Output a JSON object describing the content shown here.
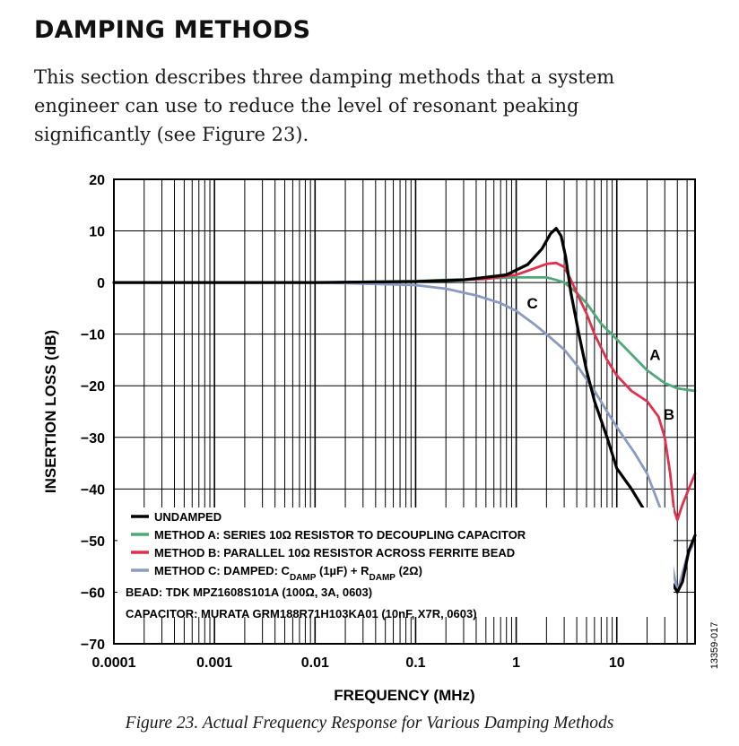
{
  "section": {
    "heading": "DAMPING METHODS",
    "body": "This section describes three damping methods that a system engineer can use to reduce the level of resonant peaking significantly (see Figure 23)."
  },
  "figure": {
    "caption": "Figure 23. Actual Frequency Response for Various Damping Methods",
    "id": "13359-017"
  },
  "chart_data": {
    "type": "line",
    "xlabel": "FREQUENCY (MHz)",
    "ylabel": "INSERTION LOSS (dB)",
    "x_scale": "log",
    "xlim": [
      0.0001,
      60
    ],
    "ylim": [
      -70,
      20
    ],
    "x_ticks": [
      0.0001,
      0.001,
      0.01,
      0.1,
      1,
      10
    ],
    "x_tick_labels": [
      "0.0001",
      "0.001",
      "0.01",
      "0.1",
      "1",
      "10"
    ],
    "y_ticks": [
      20,
      10,
      0,
      -10,
      -20,
      -30,
      -40,
      -50,
      -60,
      -70
    ],
    "y_tick_labels": [
      "20",
      "10",
      "0",
      "−10",
      "−20",
      "−30",
      "−40",
      "−50",
      "−60",
      "−70"
    ],
    "grid": true,
    "legend_placement": "bottom-left",
    "series": [
      {
        "name": "UNDAMPED",
        "color": "#000000",
        "x": [
          0.0001,
          0.01,
          0.1,
          0.3,
          0.8,
          1.3,
          1.8,
          2.2,
          2.5,
          2.8,
          3.1,
          3.5,
          4.2,
          5,
          6,
          8,
          10,
          14,
          20,
          28,
          35,
          40,
          45,
          52,
          60
        ],
        "y": [
          0,
          0,
          0.2,
          0.5,
          1.5,
          3.5,
          6.5,
          9.5,
          10.5,
          9,
          5,
          -2,
          -10,
          -17,
          -23,
          -30,
          -36,
          -40,
          -45,
          -52,
          -58,
          -60,
          -58,
          -52,
          -49
        ]
      },
      {
        "name": "METHOD A: SERIES 10Ω RESISTOR TO DECOUPLING CAPACITOR",
        "color": "#4fa877",
        "x": [
          0.0001,
          0.01,
          0.1,
          0.5,
          1,
          1.5,
          2,
          2.5,
          3,
          4,
          5,
          7,
          10,
          15,
          20,
          30,
          40,
          60
        ],
        "y": [
          0,
          0,
          0.3,
          0.8,
          1,
          1,
          1,
          0.5,
          0,
          -2,
          -4,
          -8,
          -11,
          -14.5,
          -17,
          -19.5,
          -20.5,
          -21
        ]
      },
      {
        "name": "METHOD B: PARALLEL 10Ω RESISTOR ACROSS FERRITE BEAD",
        "color": "#e0304e",
        "x": [
          0.0001,
          0.01,
          0.1,
          0.5,
          1,
          1.5,
          2,
          2.5,
          3,
          3.5,
          4,
          5,
          6,
          8,
          10,
          14,
          20,
          26,
          30,
          34,
          37,
          40,
          45,
          52,
          60
        ],
        "y": [
          0,
          0,
          0.2,
          0.7,
          1.5,
          2.7,
          3.6,
          3.8,
          3,
          0.5,
          -2,
          -6,
          -10,
          -15,
          -18,
          -21,
          -23,
          -26,
          -30,
          -37,
          -44,
          -46,
          -43,
          -40,
          -37
        ]
      },
      {
        "name": "METHOD C: DAMPED: C_DAMP (1µF) + R_DAMP (2Ω)",
        "color": "#8a9bbf",
        "x": [
          0.0001,
          0.01,
          0.03,
          0.1,
          0.2,
          0.4,
          0.7,
          1,
          1.5,
          2,
          3,
          4,
          6,
          8,
          10,
          15,
          20,
          30,
          35,
          40,
          44,
          50,
          60
        ],
        "y": [
          0,
          0,
          -0.2,
          -0.5,
          -1.2,
          -2.5,
          -4,
          -5.5,
          -8,
          -10,
          -13,
          -16,
          -21,
          -25,
          -28,
          -33,
          -37,
          -46,
          -54,
          -60,
          -57,
          -53,
          -50
        ]
      }
    ],
    "legend": [
      {
        "label": "UNDAMPED",
        "color": "#000000"
      },
      {
        "label": "METHOD A: SERIES 10Ω RESISTOR TO DECOUPLING CAPACITOR",
        "color": "#4fa877"
      },
      {
        "label": "METHOD B: PARALLEL 10Ω RESISTOR ACROSS FERRITE BEAD",
        "color": "#e0304e"
      },
      {
        "label_parts": [
          "METHOD C: DAMPED: C",
          "DAMP",
          " (1µF) + R",
          "DAMP",
          " (2Ω)"
        ],
        "color": "#8a9bbf"
      }
    ],
    "notes": [
      "BEAD: TDK MPZ1608S101A (100Ω, 3A, 0603)",
      "CAPACITOR: MURATA GRM188R71H103KA01 (10nF, X7R, 0603)"
    ],
    "annotations": [
      {
        "text": "A",
        "x": 24,
        "y": -14
      },
      {
        "text": "B",
        "x": 33,
        "y": -25.5
      },
      {
        "text": "C",
        "x": 1.45,
        "y": -4
      }
    ]
  }
}
